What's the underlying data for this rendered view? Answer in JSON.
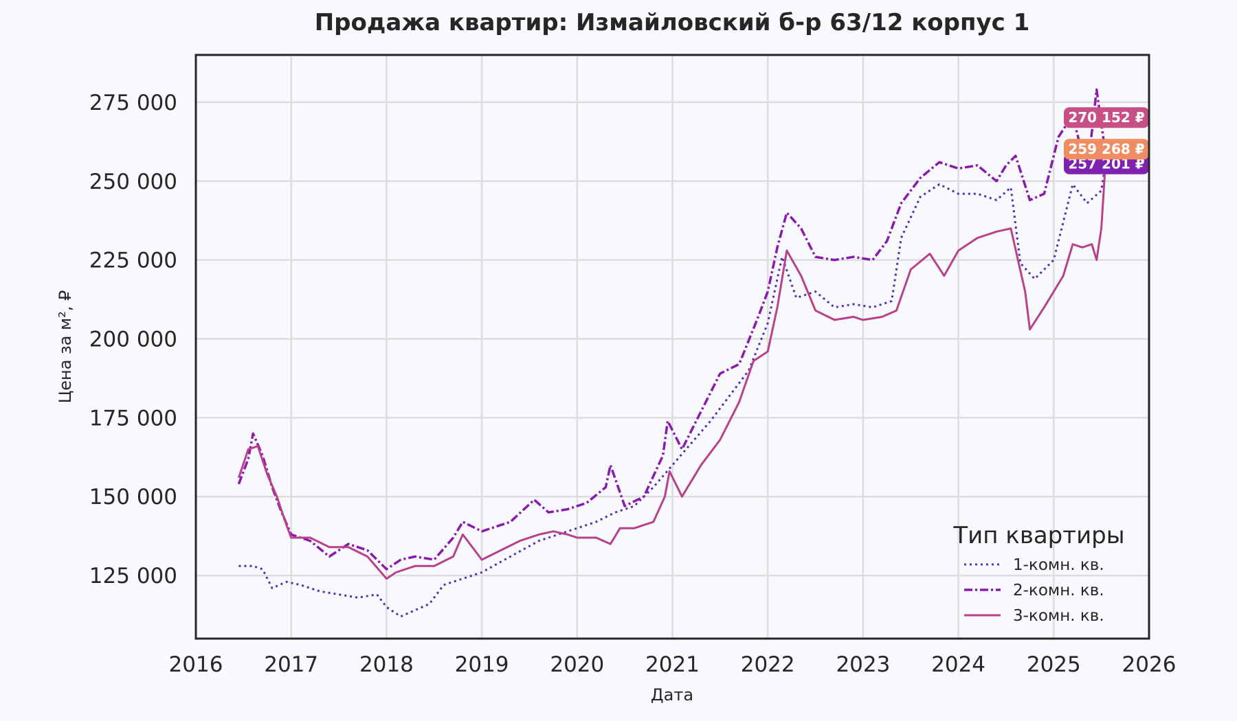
{
  "chart_data": {
    "type": "line",
    "title": "Продажа квартир: Измайловский б-р 63/12 корпус 1",
    "xlabel": "Дата",
    "ylabel": "Цена за м², ₽",
    "xlim": [
      2016,
      2026
    ],
    "ylim": [
      105000,
      290000
    ],
    "x_ticks": [
      2016,
      2017,
      2018,
      2019,
      2020,
      2021,
      2022,
      2023,
      2024,
      2025,
      2026
    ],
    "x_tick_labels": [
      "2016",
      "2017",
      "2018",
      "2019",
      "2020",
      "2021",
      "2022",
      "2023",
      "2024",
      "2025",
      "2026"
    ],
    "y_ticks": [
      125000,
      150000,
      175000,
      200000,
      225000,
      250000,
      275000
    ],
    "y_tick_labels": [
      "125 000",
      "150 000",
      "175 000",
      "200 000",
      "225 000",
      "250 000",
      "275 000"
    ],
    "grid": true,
    "legend": {
      "title": "Тип квартиры",
      "placement": "bottom-right"
    },
    "series": [
      {
        "name": "1-комн. кв.",
        "color": "#5b2bb0",
        "dash": "dotted",
        "x": [
          2016.45,
          2016.6,
          2016.7,
          2016.8,
          2016.95,
          2017.1,
          2017.3,
          2017.5,
          2017.7,
          2017.9,
          2018.0,
          2018.15,
          2018.3,
          2018.45,
          2018.6,
          2018.8,
          2019.0,
          2019.3,
          2019.6,
          2019.8,
          2020.0,
          2020.2,
          2020.4,
          2020.6,
          2020.8,
          2021.0,
          2021.2,
          2021.4,
          2021.6,
          2021.8,
          2022.0,
          2022.15,
          2022.3,
          2022.5,
          2022.7,
          2022.9,
          2023.1,
          2023.3,
          2023.4,
          2023.6,
          2023.8,
          2024.0,
          2024.2,
          2024.4,
          2024.55,
          2024.65,
          2024.8,
          2025.0,
          2025.2,
          2025.35,
          2025.5,
          2025.55
        ],
        "y": [
          128000,
          128000,
          127000,
          121000,
          123000,
          122000,
          120000,
          119000,
          118000,
          119000,
          115000,
          112000,
          114000,
          116000,
          122000,
          124000,
          126000,
          131000,
          136000,
          138000,
          140000,
          142000,
          145000,
          147000,
          153000,
          160000,
          167000,
          174000,
          182000,
          190000,
          205000,
          226000,
          213000,
          215000,
          210000,
          211000,
          210000,
          212000,
          232000,
          245000,
          249000,
          246000,
          246000,
          244000,
          248000,
          224000,
          219000,
          225000,
          249000,
          243000,
          247000,
          257201
        ]
      },
      {
        "name": "2-комн. кв.",
        "color": "#8a1aad",
        "dash": "dashdot",
        "x": [
          2016.45,
          2016.55,
          2016.6,
          2016.7,
          2016.8,
          2016.9,
          2017.0,
          2017.2,
          2017.4,
          2017.6,
          2017.8,
          2018.0,
          2018.15,
          2018.3,
          2018.5,
          2018.7,
          2018.8,
          2019.0,
          2019.3,
          2019.55,
          2019.7,
          2019.9,
          2020.1,
          2020.3,
          2020.35,
          2020.5,
          2020.7,
          2020.9,
          2020.95,
          2021.1,
          2021.3,
          2021.5,
          2021.7,
          2021.9,
          2022.0,
          2022.1,
          2022.2,
          2022.35,
          2022.5,
          2022.7,
          2022.9,
          2023.1,
          2023.25,
          2023.4,
          2023.6,
          2023.8,
          2024.0,
          2024.2,
          2024.4,
          2024.5,
          2024.6,
          2024.75,
          2024.9,
          2025.05,
          2025.2,
          2025.35,
          2025.45,
          2025.55
        ],
        "y": [
          154000,
          162000,
          170000,
          163000,
          153000,
          145000,
          138000,
          136000,
          131000,
          135000,
          133000,
          127000,
          130000,
          131000,
          130000,
          137000,
          142000,
          139000,
          142000,
          149000,
          145000,
          146000,
          148000,
          153000,
          160000,
          147000,
          150000,
          163000,
          174000,
          165000,
          177000,
          189000,
          192000,
          207000,
          215000,
          229000,
          240000,
          235000,
          226000,
          225000,
          226000,
          225000,
          231000,
          243000,
          251000,
          256000,
          254000,
          255000,
          250000,
          255000,
          258000,
          244000,
          246000,
          264000,
          271000,
          252000,
          279000,
          257201
        ]
      },
      {
        "name": "3-комн. кв.",
        "color": "#b8418a",
        "dash": "solid",
        "x": [
          2016.45,
          2016.55,
          2016.65,
          2016.75,
          2016.85,
          2016.95,
          2017.0,
          2017.2,
          2017.4,
          2017.6,
          2017.8,
          2018.0,
          2018.1,
          2018.3,
          2018.5,
          2018.7,
          2018.8,
          2019.0,
          2019.2,
          2019.4,
          2019.6,
          2019.75,
          2019.9,
          2020.0,
          2020.2,
          2020.35,
          2020.45,
          2020.6,
          2020.8,
          2020.92,
          2020.97,
          2021.1,
          2021.3,
          2021.5,
          2021.7,
          2021.85,
          2022.0,
          2022.1,
          2022.2,
          2022.35,
          2022.5,
          2022.7,
          2022.9,
          2023.0,
          2023.2,
          2023.35,
          2023.5,
          2023.7,
          2023.85,
          2024.0,
          2024.2,
          2024.4,
          2024.55,
          2024.7,
          2024.75,
          2024.9,
          2025.0,
          2025.1,
          2025.2,
          2025.3,
          2025.4,
          2025.45,
          2025.5,
          2025.55
        ],
        "y": [
          156000,
          165000,
          166000,
          157000,
          150000,
          141000,
          137000,
          137000,
          134000,
          134000,
          131000,
          124000,
          126000,
          128000,
          128000,
          131000,
          138000,
          130000,
          133000,
          136000,
          138000,
          139000,
          138000,
          137000,
          137000,
          135000,
          140000,
          140000,
          142000,
          150000,
          158000,
          150000,
          160000,
          168000,
          180000,
          193000,
          196000,
          210000,
          228000,
          220000,
          209000,
          206000,
          207000,
          206000,
          207000,
          209000,
          222000,
          227000,
          220000,
          228000,
          232000,
          234000,
          235000,
          215000,
          203000,
          210000,
          215000,
          220000,
          230000,
          229000,
          230000,
          225000,
          235000,
          259268
        ]
      }
    ],
    "end_labels": [
      {
        "text": "270 152 ₽",
        "value": 270152,
        "color": "#c84e86"
      },
      {
        "text": "259 268 ₽",
        "value": 259268,
        "color": "#ee8c62"
      },
      {
        "text": "257 201 ₽",
        "value": 257201,
        "color": "#7f22b0"
      }
    ]
  }
}
